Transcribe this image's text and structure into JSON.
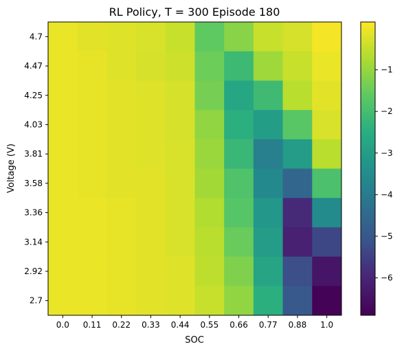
{
  "chart_data": {
    "type": "heatmap",
    "title": "RL Policy, T = 300 Episode 180",
    "xlabel": "SOC",
    "ylabel": "Voltage (V)",
    "x_categories": [
      "0.0",
      "0.11",
      "0.22",
      "0.33",
      "0.44",
      "0.55",
      "0.66",
      "0.77",
      "0.88",
      "1.0"
    ],
    "y_categories": [
      "4.7",
      "4.47",
      "4.25",
      "4.03",
      "3.81",
      "3.58",
      "3.36",
      "3.14",
      "2.92",
      "2.7"
    ],
    "values": [
      [
        -0.05,
        -0.15,
        -0.2,
        -0.25,
        -0.45,
        -1.6,
        -1.15,
        -0.45,
        -0.3,
        0.05
      ],
      [
        -0.05,
        -0.1,
        -0.2,
        -0.3,
        -0.4,
        -1.45,
        -2.15,
        -0.9,
        -0.45,
        -0.05
      ],
      [
        -0.05,
        -0.1,
        -0.15,
        -0.2,
        -0.3,
        -1.35,
        -2.75,
        -2.1,
        -0.6,
        -0.15
      ],
      [
        -0.05,
        -0.1,
        -0.15,
        -0.2,
        -0.3,
        -1.05,
        -2.45,
        -3.0,
        -1.7,
        -0.25
      ],
      [
        -0.05,
        -0.1,
        -0.15,
        -0.2,
        -0.25,
        -0.95,
        -2.2,
        -3.9,
        -3.05,
        -0.6
      ],
      [
        -0.05,
        -0.1,
        -0.15,
        -0.15,
        -0.25,
        -0.85,
        -1.85,
        -3.6,
        -4.6,
        -1.9
      ],
      [
        -0.05,
        -0.05,
        -0.1,
        -0.15,
        -0.25,
        -0.7,
        -1.75,
        -3.2,
        -5.9,
        -3.55
      ],
      [
        -0.05,
        -0.05,
        -0.1,
        -0.15,
        -0.25,
        -0.6,
        -1.5,
        -3.05,
        -6.1,
        -5.35
      ],
      [
        -0.05,
        -0.05,
        -0.1,
        -0.15,
        -0.2,
        -0.55,
        -1.25,
        -2.8,
        -5.2,
        -6.4
      ],
      [
        -0.05,
        -0.05,
        -0.1,
        -0.15,
        -0.2,
        -0.45,
        -1.05,
        -2.45,
        -4.95,
        -6.85
      ]
    ],
    "colorbar": {
      "ticks": [
        "−1",
        "−2",
        "−3",
        "−4",
        "−5",
        "−6"
      ],
      "range": [
        -6.9,
        0.15
      ],
      "colormap": "viridis"
    }
  }
}
